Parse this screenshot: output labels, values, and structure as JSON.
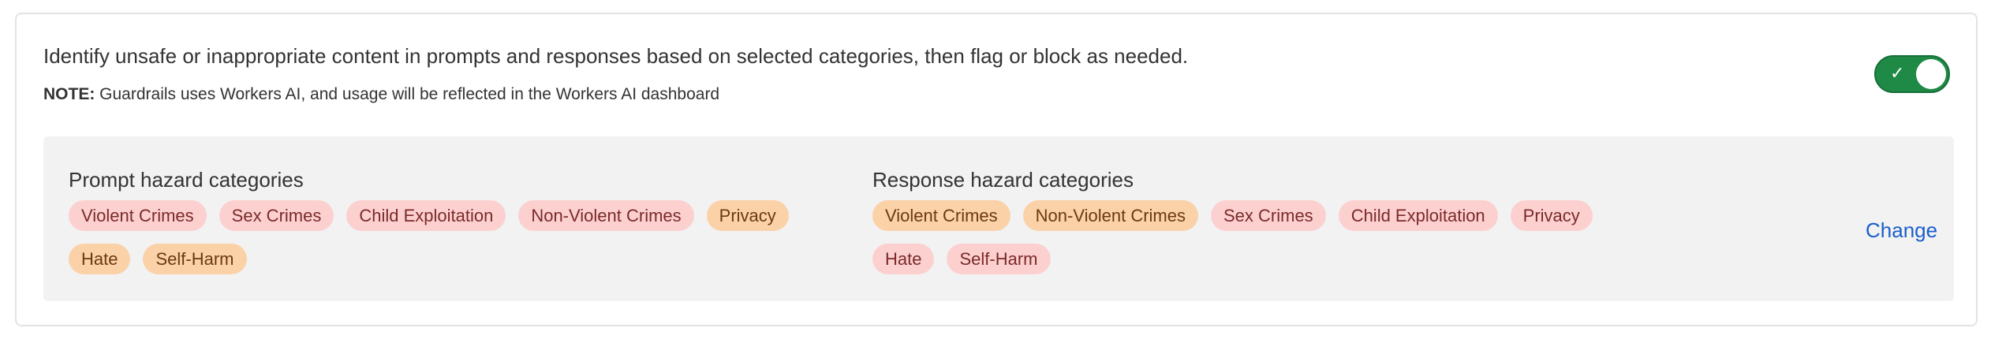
{
  "description": "Identify unsafe or inappropriate content in prompts and responses based on selected categories, then flag or block as needed.",
  "note": {
    "label": "NOTE:",
    "text": " Guardrails uses Workers AI, and usage will be reflected in the Workers AI dashboard"
  },
  "toggle": {
    "enabled": true,
    "icon": "check-icon",
    "glyph": "✓",
    "color": "#1f8a45"
  },
  "prompt": {
    "title": "Prompt hazard categories",
    "chips": [
      {
        "label": "Violent Crimes",
        "tone": "pink"
      },
      {
        "label": "Sex Crimes",
        "tone": "pink"
      },
      {
        "label": "Child Exploitation",
        "tone": "pink"
      },
      {
        "label": "Non-Violent Crimes",
        "tone": "pink"
      },
      {
        "label": "Privacy",
        "tone": "orange"
      },
      {
        "label": "Hate",
        "tone": "orange"
      },
      {
        "label": "Self-Harm",
        "tone": "orange"
      }
    ]
  },
  "response": {
    "title": "Response hazard categories",
    "chips": [
      {
        "label": "Violent Crimes",
        "tone": "orange"
      },
      {
        "label": "Non-Violent Crimes",
        "tone": "orange"
      },
      {
        "label": "Sex Crimes",
        "tone": "pink"
      },
      {
        "label": "Child Exploitation",
        "tone": "pink"
      },
      {
        "label": "Privacy",
        "tone": "pink"
      },
      {
        "label": "Hate",
        "tone": "pink"
      },
      {
        "label": "Self-Harm",
        "tone": "pink"
      }
    ]
  },
  "change_label": "Change",
  "colors": {
    "pink_bg": "#fdd0d0",
    "orange_bg": "#fbd1a8",
    "link": "#1a5fcc",
    "panel": "#f2f2f2"
  }
}
